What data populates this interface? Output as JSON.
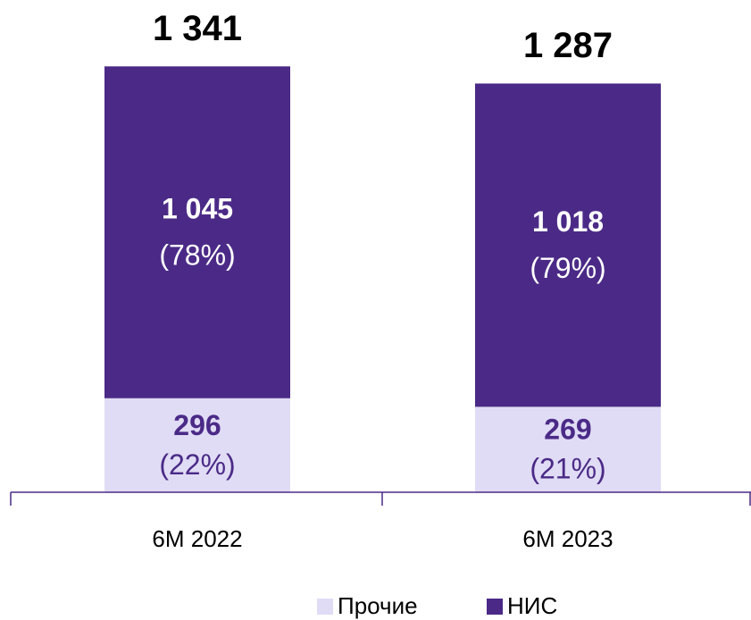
{
  "chart_data": {
    "type": "stacked_bar",
    "categories": [
      "6M 2022",
      "6M 2023"
    ],
    "series": [
      {
        "name": "Прочие",
        "color": "#e0dcf5",
        "values": [
          296,
          269
        ],
        "shares": [
          {
            "value": 22,
            "label": "(22%)"
          },
          {
            "value": 21,
            "label": "(21%)"
          }
        ]
      },
      {
        "name": "НИС",
        "color": "#4b2a87",
        "values": [
          1045,
          1018
        ],
        "value_labels": [
          "1 045",
          "1 018"
        ],
        "shares": [
          {
            "value": 78,
            "label": "(78%)"
          },
          {
            "value": 79,
            "label": "(79%)"
          }
        ]
      }
    ],
    "totals": [
      1341,
      1287
    ],
    "total_labels": [
      "1 341",
      "1 287"
    ],
    "ylim": [
      0,
      1550
    ],
    "legend": "bottom"
  }
}
